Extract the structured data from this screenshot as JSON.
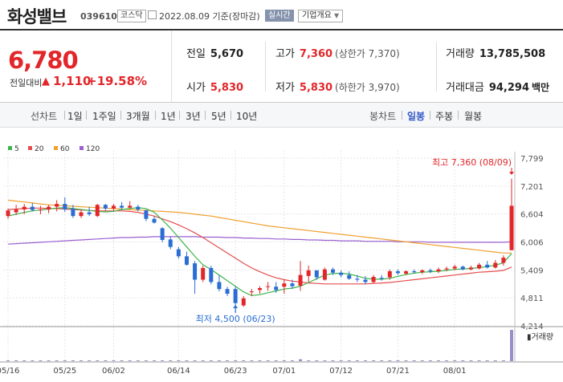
{
  "header": {
    "stock_name": "화성밸브",
    "stock_code": "039610",
    "market_badge": "코스닥",
    "date_text": "2022.08.09 기준(장마감)",
    "realtime_label": "실시간",
    "company_info_label": "기업개요"
  },
  "quote": {
    "current_price": "6,780",
    "change_label": "전일대비",
    "change_arrow": "▲",
    "change_value": "1,110",
    "change_percent": "+19.58%",
    "prev_close_label": "전일",
    "prev_close": "5,670",
    "high_label": "고가",
    "high": "7,360",
    "upper_limit": "(상한가 7,370)",
    "volume_label": "거래량",
    "volume": "13,785,508",
    "open_label": "시가",
    "open": "5,830",
    "low_label": "저가",
    "low": "5,830",
    "lower_limit": "(하한가 3,970)",
    "amount_label": "거래대금",
    "amount": "94,294",
    "amount_unit": "백만"
  },
  "toolbar": {
    "line_chart_label": "선차트",
    "line_periods": [
      "1일",
      "1주일",
      "3개월",
      "1년",
      "3년",
      "5년",
      "10년"
    ],
    "candle_chart_label": "봉차트",
    "candle_periods": [
      "일봉",
      "주봉",
      "월봉"
    ],
    "active_candle_period": "일봉"
  },
  "colors": {
    "up": "#e2262a",
    "down": "#2a6dd4",
    "ma5": "#3cb44b",
    "ma20": "#e64d4d",
    "ma60": "#f0a030",
    "ma120": "#9a5fd0"
  },
  "chart_data": {
    "type": "candlestick",
    "legend": [
      {
        "label": "5",
        "color": "#3cb44b"
      },
      {
        "label": "20",
        "color": "#e64d4d"
      },
      {
        "label": "60",
        "color": "#f0a030"
      },
      {
        "label": "120",
        "color": "#9a5fd0"
      }
    ],
    "y_ticks": [
      "7,799",
      "7,201",
      "6,604",
      "6,006",
      "5,409",
      "4,811",
      "4,214"
    ],
    "y_range": [
      4214,
      7799
    ],
    "x_ticks": [
      "05/16",
      "05/25",
      "06/02",
      "06/14",
      "06/23",
      "07/01",
      "07/12",
      "07/21",
      "08/01"
    ],
    "x_tick_index": [
      0,
      7,
      13,
      21,
      28,
      34,
      41,
      48,
      55
    ],
    "high_annotation": "최고 7,360 (08/09)",
    "low_annotation": "최저 4,500 (06/23)",
    "volume_label": "거래량",
    "candles": [
      {
        "o": 6560,
        "h": 6720,
        "l": 6500,
        "c": 6680
      },
      {
        "o": 6640,
        "h": 6800,
        "l": 6580,
        "c": 6700
      },
      {
        "o": 6700,
        "h": 6820,
        "l": 6600,
        "c": 6760
      },
      {
        "o": 6760,
        "h": 6840,
        "l": 6660,
        "c": 6690
      },
      {
        "o": 6690,
        "h": 6780,
        "l": 6600,
        "c": 6700
      },
      {
        "o": 6700,
        "h": 6800,
        "l": 6620,
        "c": 6760
      },
      {
        "o": 6760,
        "h": 6900,
        "l": 6660,
        "c": 6820
      },
      {
        "o": 6820,
        "h": 6960,
        "l": 6650,
        "c": 6700
      },
      {
        "o": 6720,
        "h": 6800,
        "l": 6520,
        "c": 6560
      },
      {
        "o": 6560,
        "h": 6700,
        "l": 6520,
        "c": 6640
      },
      {
        "o": 6640,
        "h": 6760,
        "l": 6560,
        "c": 6600
      },
      {
        "o": 6560,
        "h": 6820,
        "l": 6540,
        "c": 6800
      },
      {
        "o": 6800,
        "h": 6820,
        "l": 6680,
        "c": 6720
      },
      {
        "o": 6720,
        "h": 6820,
        "l": 6680,
        "c": 6780
      },
      {
        "o": 6780,
        "h": 6860,
        "l": 6700,
        "c": 6740
      },
      {
        "o": 6740,
        "h": 6880,
        "l": 6720,
        "c": 6780
      },
      {
        "o": 6760,
        "h": 6800,
        "l": 6660,
        "c": 6700
      },
      {
        "o": 6680,
        "h": 6700,
        "l": 6450,
        "c": 6500
      },
      {
        "o": 6500,
        "h": 6560,
        "l": 6400,
        "c": 6420
      },
      {
        "o": 6300,
        "h": 6320,
        "l": 6000,
        "c": 6050
      },
      {
        "o": 6060,
        "h": 6120,
        "l": 5850,
        "c": 5900
      },
      {
        "o": 5850,
        "h": 5900,
        "l": 5650,
        "c": 5700
      },
      {
        "o": 5700,
        "h": 5800,
        "l": 5500,
        "c": 5520
      },
      {
        "o": 5550,
        "h": 5600,
        "l": 4900,
        "c": 5200
      },
      {
        "o": 5200,
        "h": 5500,
        "l": 5150,
        "c": 5450
      },
      {
        "o": 5450,
        "h": 5500,
        "l": 5100,
        "c": 5150
      },
      {
        "o": 5150,
        "h": 5300,
        "l": 4950,
        "c": 5000
      },
      {
        "o": 5000,
        "h": 5050,
        "l": 4850,
        "c": 4900
      },
      {
        "o": 5000,
        "h": 5050,
        "l": 4500,
        "c": 4700
      },
      {
        "o": 4650,
        "h": 4850,
        "l": 4620,
        "c": 4800
      },
      {
        "o": 4950,
        "h": 5000,
        "l": 4850,
        "c": 4950
      },
      {
        "o": 4980,
        "h": 5060,
        "l": 4900,
        "c": 5020
      },
      {
        "o": 5050,
        "h": 5150,
        "l": 4960,
        "c": 5060
      },
      {
        "o": 5050,
        "h": 5150,
        "l": 4920,
        "c": 4980
      },
      {
        "o": 5050,
        "h": 5200,
        "l": 4900,
        "c": 5120
      },
      {
        "o": 5120,
        "h": 5200,
        "l": 5000,
        "c": 5060
      },
      {
        "o": 5070,
        "h": 5600,
        "l": 4960,
        "c": 5300
      },
      {
        "o": 5280,
        "h": 5500,
        "l": 5150,
        "c": 5400
      },
      {
        "o": 5400,
        "h": 5400,
        "l": 5200,
        "c": 5250
      },
      {
        "o": 5200,
        "h": 5460,
        "l": 5180,
        "c": 5420
      },
      {
        "o": 5420,
        "h": 5460,
        "l": 5300,
        "c": 5350
      },
      {
        "o": 5350,
        "h": 5400,
        "l": 5250,
        "c": 5300
      },
      {
        "o": 5300,
        "h": 5380,
        "l": 5200,
        "c": 5220
      },
      {
        "o": 5220,
        "h": 5300,
        "l": 5150,
        "c": 5200
      },
      {
        "o": 5200,
        "h": 5280,
        "l": 5100,
        "c": 5150
      },
      {
        "o": 5150,
        "h": 5300,
        "l": 5120,
        "c": 5260
      },
      {
        "o": 5240,
        "h": 5300,
        "l": 5180,
        "c": 5220
      },
      {
        "o": 5250,
        "h": 5420,
        "l": 5200,
        "c": 5380
      },
      {
        "o": 5380,
        "h": 5420,
        "l": 5300,
        "c": 5340
      },
      {
        "o": 5330,
        "h": 5400,
        "l": 5300,
        "c": 5380
      },
      {
        "o": 5380,
        "h": 5420,
        "l": 5340,
        "c": 5360
      },
      {
        "o": 5360,
        "h": 5420,
        "l": 5320,
        "c": 5400
      },
      {
        "o": 5400,
        "h": 5440,
        "l": 5340,
        "c": 5380
      },
      {
        "o": 5380,
        "h": 5460,
        "l": 5340,
        "c": 5420
      },
      {
        "o": 5420,
        "h": 5480,
        "l": 5380,
        "c": 5440
      },
      {
        "o": 5440,
        "h": 5520,
        "l": 5400,
        "c": 5480
      },
      {
        "o": 5480,
        "h": 5500,
        "l": 5400,
        "c": 5420
      },
      {
        "o": 5420,
        "h": 5500,
        "l": 5400,
        "c": 5460
      },
      {
        "o": 5440,
        "h": 5560,
        "l": 5420,
        "c": 5520
      },
      {
        "o": 5520,
        "h": 5600,
        "l": 5440,
        "c": 5460
      },
      {
        "o": 5460,
        "h": 5620,
        "l": 5440,
        "c": 5560
      },
      {
        "o": 5560,
        "h": 5720,
        "l": 5500,
        "c": 5670
      },
      {
        "o": 5830,
        "h": 7360,
        "l": 5830,
        "c": 6780
      }
    ],
    "ma5": [
      6560,
      6600,
      6640,
      6670,
      6690,
      6710,
      6730,
      6740,
      6720,
      6700,
      6680,
      6660,
      6650,
      6660,
      6700,
      6720,
      6740,
      6720,
      6640,
      6480,
      6300,
      6100,
      5900,
      5700,
      5520,
      5420,
      5300,
      5180,
      5060,
      4940,
      4860,
      4880,
      4920,
      4960,
      5000,
      5020,
      5060,
      5140,
      5220,
      5300,
      5330,
      5340,
      5320,
      5280,
      5230,
      5210,
      5210,
      5230,
      5270,
      5310,
      5340,
      5360,
      5370,
      5380,
      5400,
      5420,
      5430,
      5440,
      5460,
      5480,
      5510,
      5560,
      5760
    ],
    "ma20": [
      6700,
      6710,
      6720,
      6730,
      6730,
      6720,
      6720,
      6710,
      6700,
      6690,
      6680,
      6670,
      6670,
      6670,
      6670,
      6660,
      6640,
      6600,
      6560,
      6500,
      6440,
      6370,
      6290,
      6200,
      6100,
      5990,
      5880,
      5770,
      5660,
      5550,
      5450,
      5370,
      5300,
      5240,
      5200,
      5170,
      5150,
      5130,
      5120,
      5110,
      5110,
      5110,
      5110,
      5110,
      5110,
      5120,
      5130,
      5140,
      5160,
      5180,
      5200,
      5220,
      5240,
      5260,
      5280,
      5300,
      5320,
      5340,
      5360,
      5370,
      5380,
      5400,
      5470
    ],
    "ma60": [
      6900,
      6880,
      6860,
      6840,
      6820,
      6800,
      6790,
      6780,
      6770,
      6760,
      6750,
      6740,
      6730,
      6720,
      6710,
      6700,
      6690,
      6680,
      6670,
      6660,
      6650,
      6640,
      6620,
      6600,
      6580,
      6560,
      6530,
      6500,
      6470,
      6440,
      6410,
      6380,
      6350,
      6330,
      6310,
      6290,
      6270,
      6250,
      6230,
      6210,
      6190,
      6170,
      6150,
      6130,
      6110,
      6090,
      6070,
      6050,
      6030,
      6010,
      5990,
      5970,
      5950,
      5930,
      5910,
      5890,
      5870,
      5850,
      5830,
      5810,
      5790,
      5770,
      5770
    ],
    "ma120": [
      5960,
      5970,
      5980,
      5990,
      6000,
      6010,
      6020,
      6030,
      6040,
      6050,
      6060,
      6070,
      6080,
      6090,
      6100,
      6100,
      6110,
      6110,
      6120,
      6120,
      6120,
      6120,
      6120,
      6120,
      6110,
      6110,
      6110,
      6100,
      6100,
      6090,
      6090,
      6080,
      6080,
      6070,
      6070,
      6060,
      6060,
      6050,
      6050,
      6040,
      6040,
      6030,
      6030,
      6030,
      6020,
      6020,
      6020,
      6020,
      6010,
      6010,
      6010,
      6010,
      6000,
      6000,
      6000,
      6000,
      6000,
      6000,
      6000,
      6000,
      6000,
      6000,
      6010
    ],
    "volume": [
      0.01,
      0.01,
      0.01,
      0.01,
      0.01,
      0.01,
      0.015,
      0.01,
      0.01,
      0.01,
      0.01,
      0.01,
      0.01,
      0.01,
      0.01,
      0.01,
      0.01,
      0.01,
      0.01,
      0.01,
      0.01,
      0.01,
      0.01,
      0.01,
      0.01,
      0.01,
      0.01,
      0.01,
      0.02,
      0.01,
      0.01,
      0.01,
      0.01,
      0.01,
      0.01,
      0.01,
      0.06,
      0.02,
      0.02,
      0.02,
      0.01,
      0.01,
      0.01,
      0.01,
      0.01,
      0.01,
      0.01,
      0.01,
      0.01,
      0.01,
      0.01,
      0.01,
      0.01,
      0.01,
      0.01,
      0.01,
      0.01,
      0.01,
      0.01,
      0.01,
      0.01,
      0.02,
      1.0
    ]
  }
}
